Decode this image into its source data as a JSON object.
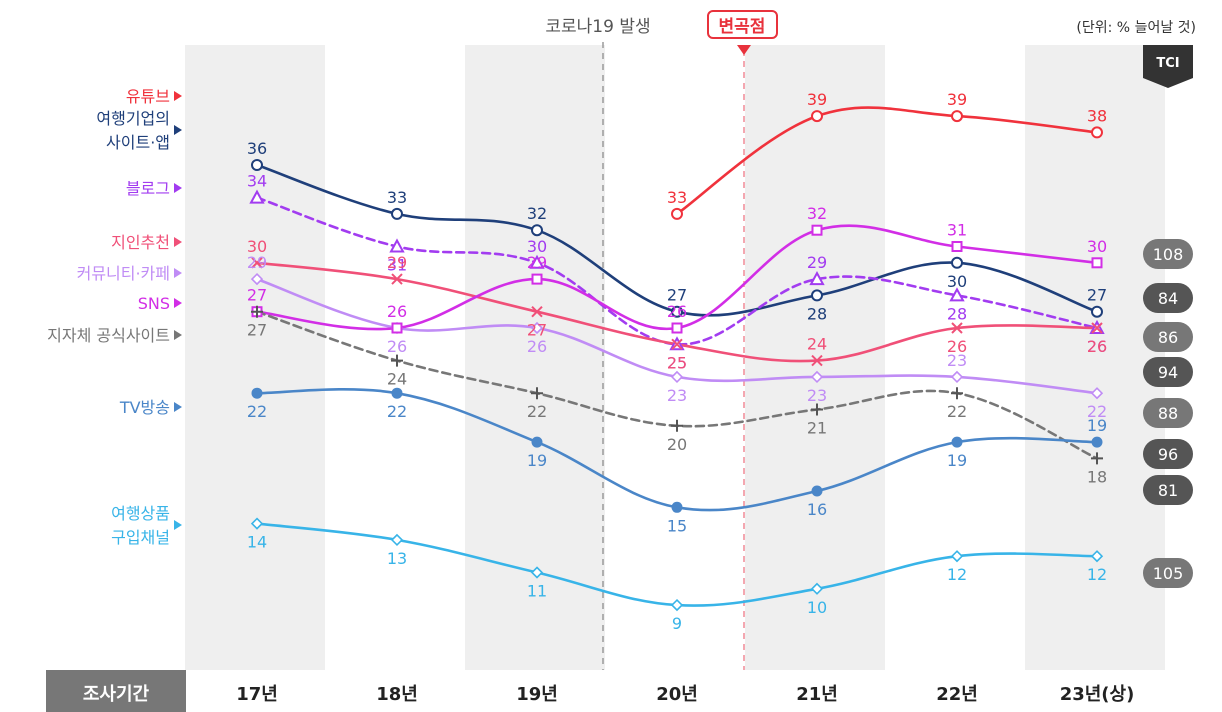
{
  "header": {
    "corona_label": "코로나19 발생",
    "inflection_label": "변곡점",
    "unit_label": "(단위: % 늘어날 것)",
    "tci_label": "TCI"
  },
  "footer": {
    "period_label": "조사기간"
  },
  "colors": {
    "youtube": "#f0323c",
    "corp_site": "#1f3f7a",
    "blog": "#a23cf0",
    "referral": "#f05078",
    "community": "#c08cf5",
    "sns": "#d22ee6",
    "local_gov": "#777777",
    "tv": "#4a86c8",
    "shopping": "#38b4e8"
  },
  "chart_data": {
    "type": "line",
    "categories": [
      "17년",
      "18년",
      "19년",
      "20년",
      "21년",
      "22년",
      "23년(상)"
    ],
    "annotations": [
      "코로나19 발생",
      "변곡점"
    ],
    "unit": "(단위: % 늘어날 것)",
    "series": [
      {
        "key": "youtube",
        "name": "유튜브",
        "values": [
          null,
          null,
          null,
          33,
          39,
          39,
          38
        ],
        "tci": ""
      },
      {
        "key": "corp_site",
        "name": "여행기업의 사이트·앱",
        "values": [
          36,
          33,
          32,
          27,
          28,
          30,
          27
        ],
        "tci": "84"
      },
      {
        "key": "blog",
        "name": "블로그",
        "values": [
          34,
          31,
          30,
          25,
          29,
          28,
          26
        ],
        "tci": "86"
      },
      {
        "key": "referral",
        "name": "지인추천",
        "values": [
          30,
          29,
          27,
          25,
          24,
          26,
          26
        ],
        "tci": "94"
      },
      {
        "key": "community",
        "name": "커뮤니티·카페",
        "values": [
          29,
          26,
          26,
          23,
          23,
          23,
          22
        ],
        "tci": "88"
      },
      {
        "key": "sns",
        "name": "SNS",
        "values": [
          27,
          26,
          29,
          26,
          32,
          31,
          30
        ],
        "tci": "108"
      },
      {
        "key": "local_gov",
        "name": "지자체 공식사이트",
        "values": [
          27,
          24,
          22,
          20,
          21,
          22,
          18
        ],
        "tci": "81"
      },
      {
        "key": "tv",
        "name": "TV방송",
        "values": [
          22,
          22,
          19,
          15,
          16,
          19,
          19
        ],
        "tci": "96"
      },
      {
        "key": "shopping",
        "name": "여행상품 구입채널",
        "values": [
          14,
          13,
          11,
          9,
          10,
          12,
          12
        ],
        "tci": "105"
      }
    ]
  }
}
